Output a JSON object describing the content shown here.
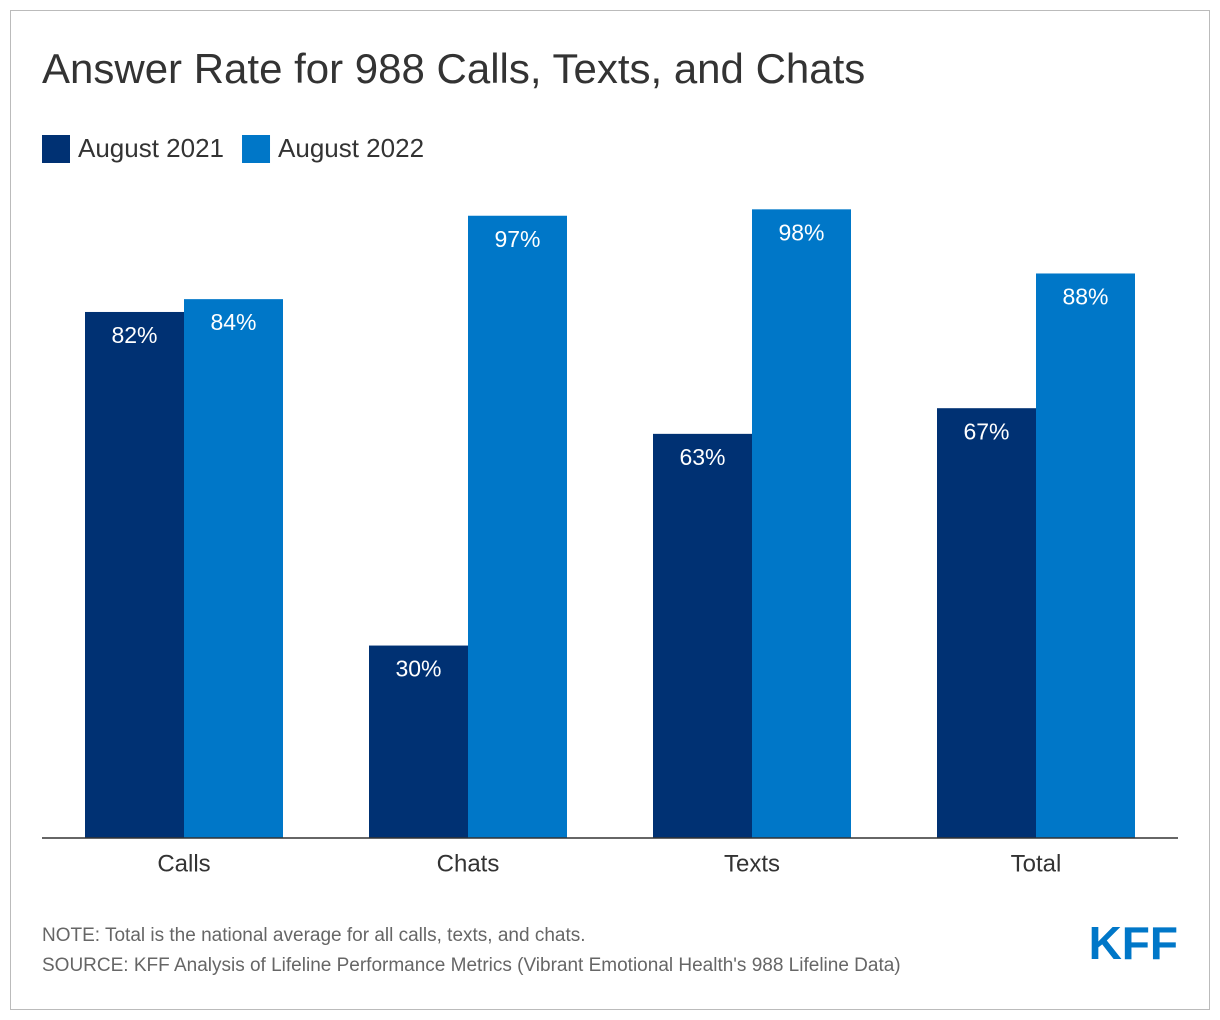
{
  "chart_data": {
    "type": "bar",
    "title": "Answer Rate for 988 Calls, Texts, and Chats",
    "categories": [
      "Calls",
      "Chats",
      "Texts",
      "Total"
    ],
    "series": [
      {
        "name": "August 2021",
        "color": "#003173",
        "values": [
          82,
          30,
          63,
          67
        ],
        "value_labels": [
          "82%",
          "30%",
          "63%",
          "67%"
        ]
      },
      {
        "name": "August 2022",
        "color": "#0077c8",
        "values": [
          84,
          97,
          98,
          88
        ],
        "value_labels": [
          "84%",
          "97%",
          "98%",
          "88%"
        ]
      }
    ],
    "ylim": [
      0,
      100
    ],
    "notes": [
      "NOTE: Total is the national average for all calls, texts, and chats.",
      "SOURCE: KFF Analysis of Lifeline Performance Metrics (Vibrant Emotional Health's 988 Lifeline Data)"
    ],
    "logo": "KFF"
  }
}
